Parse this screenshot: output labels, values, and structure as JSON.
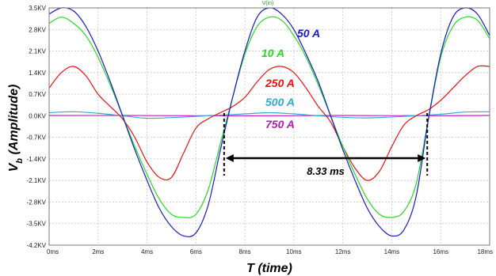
{
  "chart_data": {
    "type": "line",
    "top_label": "V(in)",
    "xlabel": "T (time)",
    "ylabel_main": "V",
    "ylabel_sub": "b",
    "ylabel_rest": " (Amplitude)",
    "xlim": [
      0,
      18
    ],
    "ylim": [
      -4.2,
      3.5
    ],
    "x_ticks": [
      {
        "value": 0,
        "label": "0ms"
      },
      {
        "value": 2,
        "label": "2ms"
      },
      {
        "value": 4,
        "label": "4ms"
      },
      {
        "value": 6,
        "label": "6ms"
      },
      {
        "value": 8,
        "label": "8ms"
      },
      {
        "value": 10,
        "label": "10ms"
      },
      {
        "value": 12,
        "label": "12ms"
      },
      {
        "value": 14,
        "label": "14ms"
      },
      {
        "value": 16,
        "label": "16ms"
      },
      {
        "value": 18,
        "label": "18ms"
      }
    ],
    "y_ticks": [
      {
        "value": 3.5,
        "label": "3.5KV"
      },
      {
        "value": 2.8,
        "label": "2.8KV"
      },
      {
        "value": 2.1,
        "label": "2.1KV"
      },
      {
        "value": 1.4,
        "label": "1.4KV"
      },
      {
        "value": 0.7,
        "label": "0.7KV"
      },
      {
        "value": 0.0,
        "label": "0.0KV"
      },
      {
        "value": -0.7,
        "label": "-0.7KV"
      },
      {
        "value": -1.4,
        "label": "-1.4KV"
      },
      {
        "value": -2.1,
        "label": "-2.1KV"
      },
      {
        "value": -2.8,
        "label": "-2.8KV"
      },
      {
        "value": -3.5,
        "label": "-3.5KV"
      },
      {
        "value": -4.2,
        "label": "-4.2KV"
      }
    ],
    "grid": true,
    "series": [
      {
        "name": "50 A",
        "color": "#1a1acc",
        "x": [
          0,
          0.5,
          1,
          1.5,
          2,
          2.5,
          3,
          3.5,
          4,
          4.5,
          5,
          5.5,
          6,
          6.5,
          7,
          7.5,
          8,
          8.5,
          9,
          9.5,
          10,
          10.5,
          11,
          11.5,
          12,
          12.5,
          13,
          13.5,
          14,
          14.5,
          15,
          15.5,
          16,
          16.5,
          17,
          17.5,
          18
        ],
        "y": [
          3.3,
          3.5,
          3.4,
          2.9,
          2.1,
          1.1,
          0.0,
          -1.1,
          -2.1,
          -3.0,
          -3.6,
          -3.9,
          -3.8,
          -2.9,
          -1.1,
          0.6,
          2.1,
          3.2,
          3.5,
          3.3,
          2.8,
          2.0,
          1.1,
          0.0,
          -1.1,
          -2.1,
          -3.0,
          -3.6,
          -3.9,
          -3.7,
          -2.6,
          -0.1,
          2.0,
          3.2,
          3.5,
          3.3,
          2.6
        ]
      },
      {
        "name": "10 A",
        "color": "#22dd22",
        "x": [
          0,
          0.5,
          1,
          1.5,
          2,
          2.5,
          3,
          3.5,
          4,
          4.5,
          5,
          5.5,
          6,
          6.5,
          7,
          7.5,
          8,
          8.5,
          9,
          9.5,
          10,
          10.5,
          11,
          11.5,
          12,
          12.5,
          13,
          13.5,
          14,
          14.5,
          15,
          15.5,
          16,
          16.5,
          17,
          17.5,
          18
        ],
        "y": [
          3.0,
          3.2,
          3.0,
          2.6,
          1.9,
          1.0,
          0.0,
          -1.0,
          -1.9,
          -2.7,
          -3.2,
          -3.3,
          -3.2,
          -2.4,
          -0.9,
          0.6,
          2.0,
          2.9,
          3.2,
          3.1,
          2.6,
          1.9,
          1.0,
          0.0,
          -1.0,
          -1.9,
          -2.7,
          -3.2,
          -3.3,
          -3.1,
          -2.2,
          -0.1,
          1.9,
          2.9,
          3.2,
          3.1,
          2.5
        ]
      },
      {
        "name": "250 A",
        "color": "#ee1111",
        "x": [
          0,
          0.5,
          1,
          1.5,
          2,
          2.5,
          3,
          3.5,
          4,
          4.5,
          5,
          5.5,
          6,
          6.5,
          7,
          7.5,
          8,
          8.5,
          9,
          9.5,
          10,
          10.5,
          11,
          11.5,
          12,
          12.5,
          13,
          13.5,
          14,
          14.5,
          15,
          15.5,
          16,
          16.5,
          17,
          17.5,
          18
        ],
        "y": [
          0.9,
          1.4,
          1.6,
          1.3,
          0.7,
          0.3,
          -0.1,
          -0.7,
          -1.5,
          -2.0,
          -2.0,
          -1.2,
          -0.4,
          -0.1,
          0.1,
          0.3,
          0.6,
          1.1,
          1.5,
          1.6,
          1.4,
          0.9,
          0.3,
          -0.2,
          -1.0,
          -1.7,
          -2.1,
          -1.8,
          -1.0,
          -0.3,
          0.0,
          0.2,
          0.5,
          0.9,
          1.3,
          1.6,
          1.6
        ]
      },
      {
        "name": "500 A",
        "color": "#33aacc",
        "x": [
          0,
          1,
          2,
          3,
          4,
          5,
          6,
          7,
          8,
          9,
          10,
          11,
          12,
          13,
          14,
          15,
          16,
          17,
          18
        ],
        "y": [
          0.1,
          0.13,
          0.08,
          0.0,
          -0.08,
          -0.06,
          -0.02,
          0.02,
          0.06,
          0.1,
          0.06,
          0.0,
          -0.05,
          -0.07,
          -0.04,
          0.0,
          0.05,
          0.12,
          0.13
        ]
      },
      {
        "name": "750 A",
        "color": "#cc22cc",
        "x": [
          0,
          3,
          6,
          9,
          12,
          15,
          18
        ],
        "y": [
          0.01,
          0.01,
          0.0,
          0.0,
          0.01,
          0.0,
          0.01
        ]
      }
    ],
    "label_colors": {
      "50 A": "#1a1acc",
      "10 A": "#22dd22",
      "250 A": "#ee1111",
      "500 A": "#33aacc",
      "750 A": "#aa22aa"
    },
    "annotation": {
      "text": "8.33 ms",
      "x_start": 7.15,
      "x_end": 15.45,
      "y": -1.55
    }
  }
}
